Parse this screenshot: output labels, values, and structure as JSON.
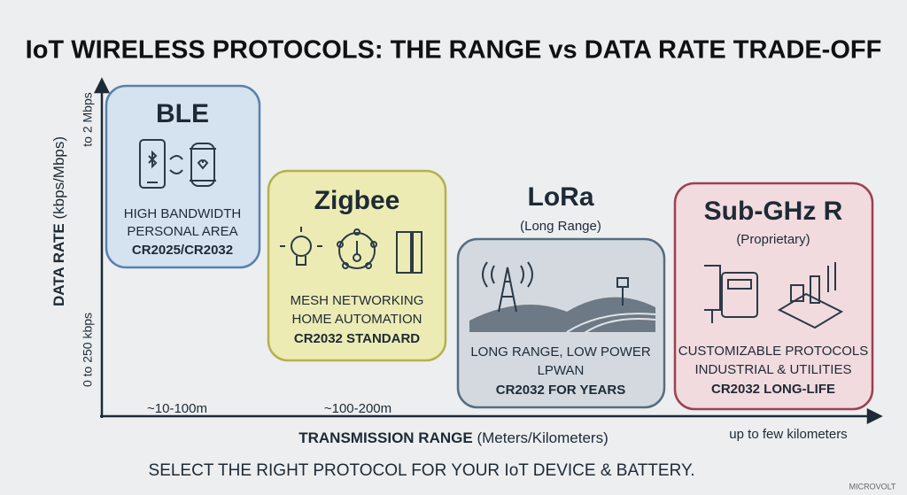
{
  "title": "IoT WIRELESS PROTOCOLS: THE RANGE vs DATA RATE TRADE-OFF",
  "y_axis": {
    "label": "DATA RATE",
    "unit": "(kbps/Mbps)",
    "top": "to 2 Mbps",
    "bottom": "0 to 250 kbps"
  },
  "x_axis": {
    "label": "TRANSMISSION RANGE",
    "unit": "(Meters/Kilometers)",
    "ticks": [
      "~10-100m",
      "~100-200m"
    ],
    "end": "up to few kilometers"
  },
  "protocols": [
    {
      "name": "BLE",
      "lines": [
        "HIGH BANDWIDTH",
        "PERSONAL AREA"
      ],
      "battery": "CR2025/CR2032"
    },
    {
      "name": "Zigbee",
      "lines": [
        "MESH NETWORKING",
        "HOME AUTOMATION"
      ],
      "battery": "CR2032 STANDARD"
    },
    {
      "name": "LoRa",
      "subtitle": "(Long Range)",
      "lines": [
        "LONG RANGE, LOW POWER",
        "LPWAN"
      ],
      "battery": "CR2032 FOR YEARS"
    },
    {
      "name": "Sub-GHz R",
      "subtitle": "(Proprietary)",
      "lines": [
        "CUSTOMIZABLE PROTOCOLS",
        "INDUSTRIAL & UTILITIES"
      ],
      "battery": "CR2032 LONG-LIFE"
    }
  ],
  "footer": "SELECT THE RIGHT PROTOCOL FOR YOUR IoT DEVICE & BATTERY.",
  "brand": "MICROVOLT"
}
